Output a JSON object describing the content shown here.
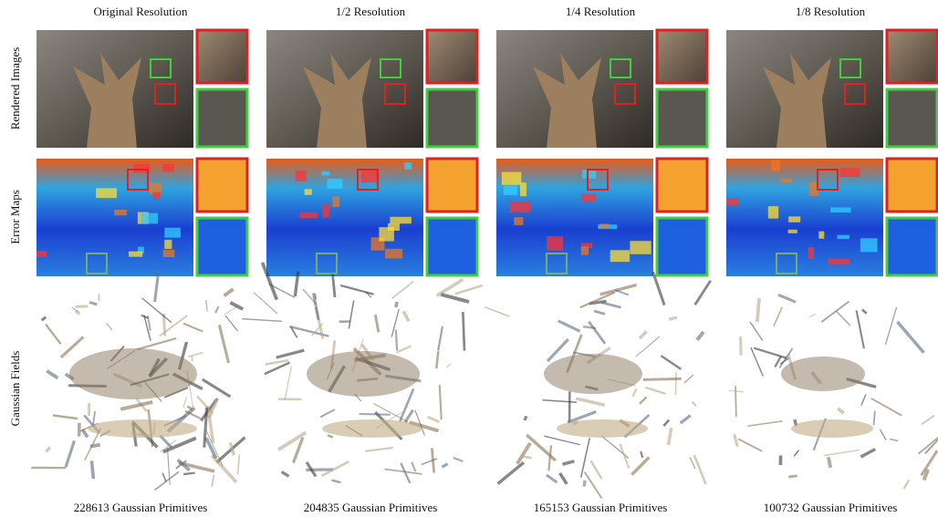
{
  "columns": [
    {
      "header": "Original Resolution",
      "caption": "228613 Gaussian Primitives"
    },
    {
      "header": "1/2 Resolution",
      "caption": "204835 Gaussian Primitives"
    },
    {
      "header": "1/4 Resolution",
      "caption": "165153 Gaussian Primitives"
    },
    {
      "header": "1/8 Resolution",
      "caption": "100732 Gaussian Primitives"
    }
  ],
  "row_labels": [
    "Rendered Images",
    "Error Maps",
    "Gaussian Fields"
  ]
}
